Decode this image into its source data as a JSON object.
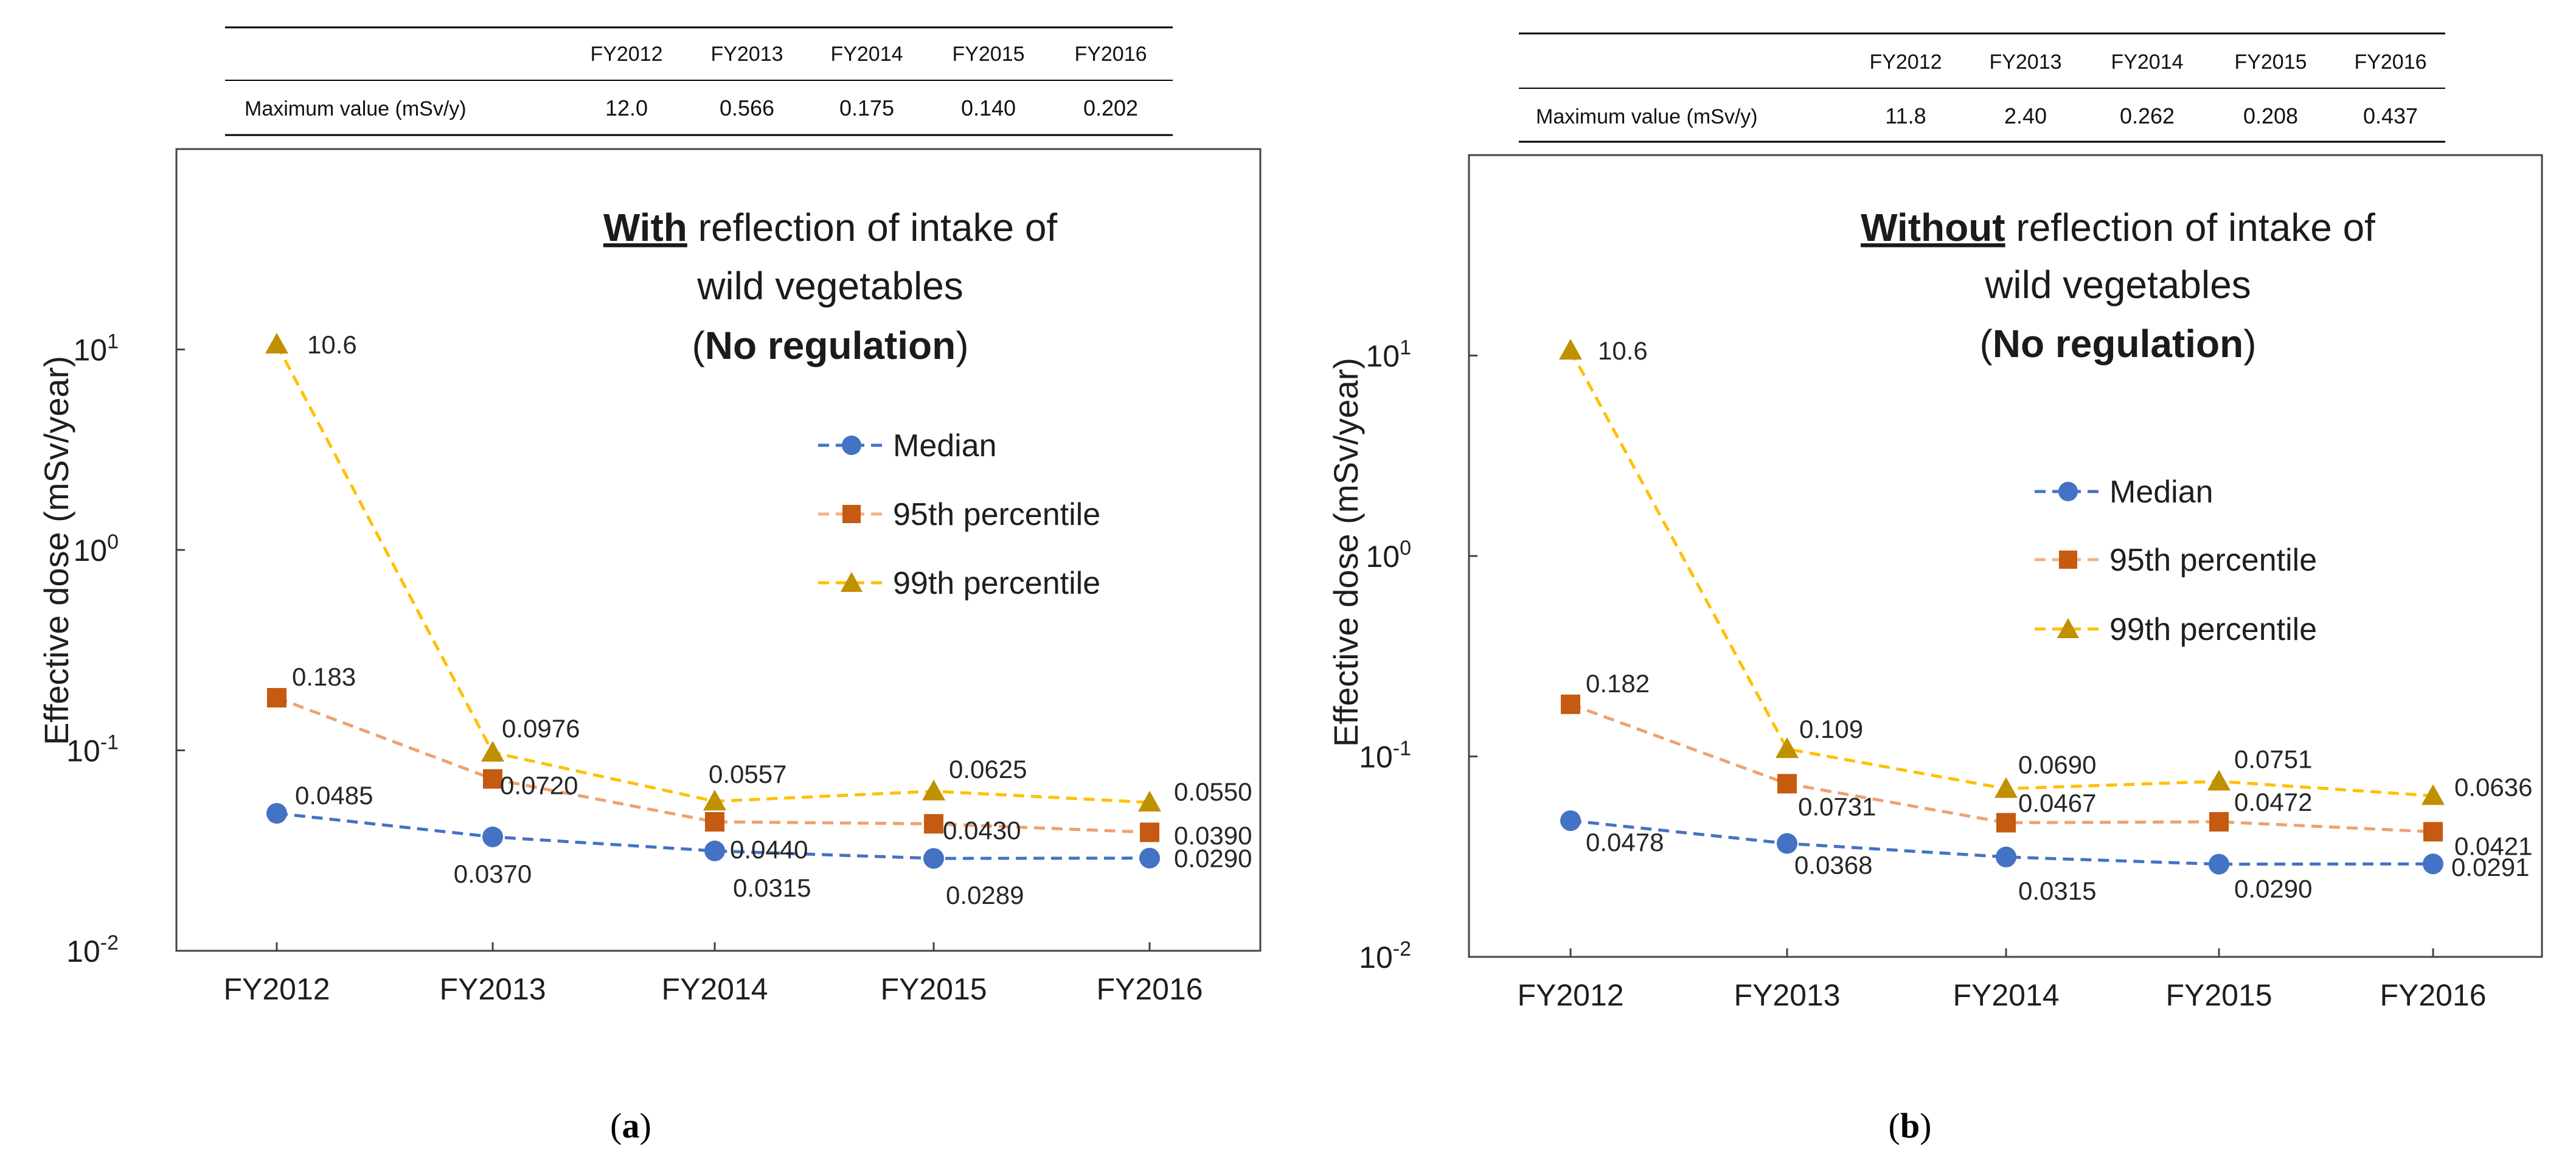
{
  "colors": {
    "median": "#4472c4",
    "p95": "#c55a11",
    "p99": "#ffc000",
    "p99_marker": "#bf9000"
  },
  "chart_data": [
    {
      "type": "line",
      "caption": "(a)",
      "caption_letter": "a",
      "title": {
        "keyword": "With",
        "line1_rest": " reflection of intake of",
        "line2": "wild vegetables",
        "line3_open": "(",
        "line3_bold": "No regulation",
        "line3_close": ")"
      },
      "ylabel": "Effective dose (mSv/year)",
      "xlabel": "",
      "yscale": "log",
      "ylim": [
        0.01,
        100
      ],
      "y_ticks": [
        {
          "value": 10,
          "base": "10",
          "exp": "1"
        },
        {
          "value": 1,
          "base": "10",
          "exp": "0"
        },
        {
          "value": 0.1,
          "base": "10",
          "exp": "-1"
        },
        {
          "value": 0.01,
          "base": "10",
          "exp": "-2"
        }
      ],
      "categories": [
        "FY2012",
        "FY2013",
        "FY2014",
        "FY2015",
        "FY2016"
      ],
      "legend": [
        "Median",
        "95th percentile",
        "99th percentile"
      ],
      "legend_position": "center-right",
      "series": [
        {
          "key": "median",
          "name": "Median",
          "marker": "circle",
          "values": [
            0.0485,
            0.037,
            0.0315,
            0.0289,
            0.029
          ],
          "labels": [
            "0.0485",
            "0.0370",
            "0.0315",
            "0.0289",
            "0.0290"
          ]
        },
        {
          "key": "p95",
          "name": "95th percentile",
          "marker": "square",
          "values": [
            0.183,
            0.072,
            0.044,
            0.043,
            0.039
          ],
          "labels": [
            "0.183",
            "0.0720",
            "0.0440",
            "0.0430",
            "0.0390"
          ]
        },
        {
          "key": "p99",
          "name": "99th percentile",
          "marker": "triangle",
          "values": [
            10.6,
            0.0976,
            0.0557,
            0.0625,
            0.055
          ],
          "labels": [
            "10.6",
            "0.0976",
            "0.0557",
            "0.0625",
            "0.0550"
          ]
        }
      ],
      "max_table": {
        "columns": [
          "FY2012",
          "FY2013",
          "FY2014",
          "FY2015",
          "FY2016"
        ],
        "row_label": "Maximum value (mSv/y)",
        "values": [
          "12.0",
          "0.566",
          "0.175",
          "0.140",
          "0.202"
        ]
      }
    },
    {
      "type": "line",
      "caption": "(b)",
      "caption_letter": "b",
      "title": {
        "keyword": "Without",
        "line1_rest": " reflection of intake of",
        "line2": "wild vegetables",
        "line3_open": "(",
        "line3_bold": "No regulation",
        "line3_close": ")"
      },
      "ylabel": "Effective dose (mSv/year)",
      "xlabel": "",
      "yscale": "log",
      "ylim": [
        0.01,
        100
      ],
      "y_ticks": [
        {
          "value": 10,
          "base": "10",
          "exp": "1"
        },
        {
          "value": 1,
          "base": "10",
          "exp": "0"
        },
        {
          "value": 0.1,
          "base": "10",
          "exp": "-1"
        },
        {
          "value": 0.01,
          "base": "10",
          "exp": "-2"
        }
      ],
      "categories": [
        "FY2012",
        "FY2013",
        "FY2014",
        "FY2015",
        "FY2016"
      ],
      "legend": [
        "Median",
        "95th percentile",
        "99th percentile"
      ],
      "legend_position": "center-right",
      "series": [
        {
          "key": "median",
          "name": "Median",
          "marker": "circle",
          "values": [
            0.0478,
            0.0368,
            0.0315,
            0.029,
            0.0291
          ],
          "labels": [
            "0.0478",
            "0.0368",
            "0.0315",
            "0.0290",
            "0.0291"
          ]
        },
        {
          "key": "p95",
          "name": "95th percentile",
          "marker": "square",
          "values": [
            0.182,
            0.0731,
            0.0467,
            0.0472,
            0.0421
          ],
          "labels": [
            "0.182",
            "0.0731",
            "0.0467",
            "0.0472",
            "0.0421"
          ]
        },
        {
          "key": "p99",
          "name": "99th percentile",
          "marker": "triangle",
          "values": [
            10.6,
            0.109,
            0.069,
            0.0751,
            0.0636
          ],
          "labels": [
            "10.6",
            "0.109",
            "0.0690",
            "0.0751",
            "0.0636"
          ]
        }
      ],
      "max_table": {
        "columns": [
          "FY2012",
          "FY2013",
          "FY2014",
          "FY2015",
          "FY2016"
        ],
        "row_label": "Maximum value (mSv/y)",
        "values": [
          "11.8",
          "2.40",
          "0.262",
          "0.208",
          "0.437"
        ]
      }
    }
  ]
}
